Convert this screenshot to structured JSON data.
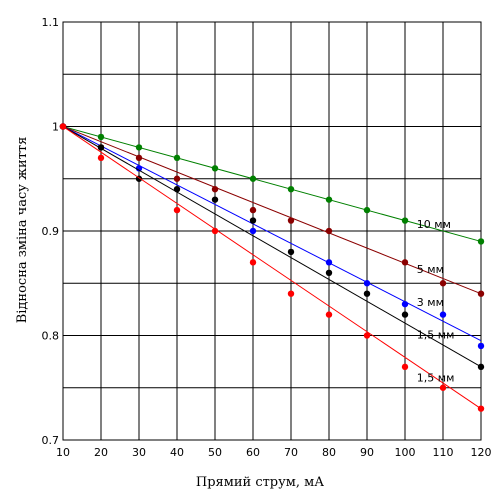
{
  "chart_data": {
    "type": "line",
    "xlabel": "Прямий струм, мА",
    "ylabel": "Відносна зміна часу життя",
    "xlim": [
      10,
      120
    ],
    "ylim": [
      0.7,
      1.1
    ],
    "x_ticks": [
      "10",
      "20",
      "30",
      "40",
      "50",
      "60",
      "70",
      "80",
      "90",
      "100",
      "110",
      "120"
    ],
    "y_ticks": [
      "0.7",
      "0.8",
      "0.9",
      "1",
      "1.1"
    ],
    "grid": true,
    "series": [
      {
        "name": "10 мм",
        "color": "#008000",
        "fit": [
          1.0,
          0.89
        ],
        "x": [
          10,
          20,
          30,
          40,
          50,
          60,
          70,
          80,
          90,
          100,
          120
        ],
        "y": [
          1.0,
          0.99,
          0.98,
          0.97,
          0.96,
          0.95,
          0.94,
          0.93,
          0.92,
          0.91,
          0.89
        ]
      },
      {
        "name": "5 мм",
        "color": "#8b0000",
        "fit": [
          1.0,
          0.84
        ],
        "x": [
          10,
          20,
          30,
          40,
          50,
          60,
          70,
          80,
          100,
          110,
          120
        ],
        "y": [
          1.0,
          0.98,
          0.97,
          0.95,
          0.94,
          0.92,
          0.91,
          0.9,
          0.87,
          0.85,
          0.84
        ]
      },
      {
        "name": "3 мм",
        "color": "#0000ff",
        "fit": [
          1.0,
          0.795
        ],
        "x": [
          10,
          30,
          60,
          80,
          90,
          100,
          110,
          120
        ],
        "y": [
          1.0,
          0.96,
          0.9,
          0.87,
          0.85,
          0.83,
          0.82,
          0.79
        ]
      },
      {
        "name": "1,5 мм",
        "color": "#000000",
        "fit": [
          1.0,
          0.77
        ],
        "x": [
          10,
          20,
          30,
          40,
          50,
          60,
          70,
          80,
          90,
          100,
          120
        ],
        "y": [
          1.0,
          0.98,
          0.95,
          0.94,
          0.93,
          0.91,
          0.88,
          0.86,
          0.84,
          0.82,
          0.77
        ]
      },
      {
        "name": "1,5 мм",
        "color": "#ff0000",
        "fit": [
          1.0,
          0.73
        ],
        "x": [
          10,
          20,
          40,
          50,
          60,
          70,
          80,
          90,
          100,
          110,
          120
        ],
        "y": [
          1.0,
          0.97,
          0.92,
          0.9,
          0.87,
          0.84,
          0.82,
          0.8,
          0.77,
          0.75,
          0.73
        ]
      }
    ]
  }
}
